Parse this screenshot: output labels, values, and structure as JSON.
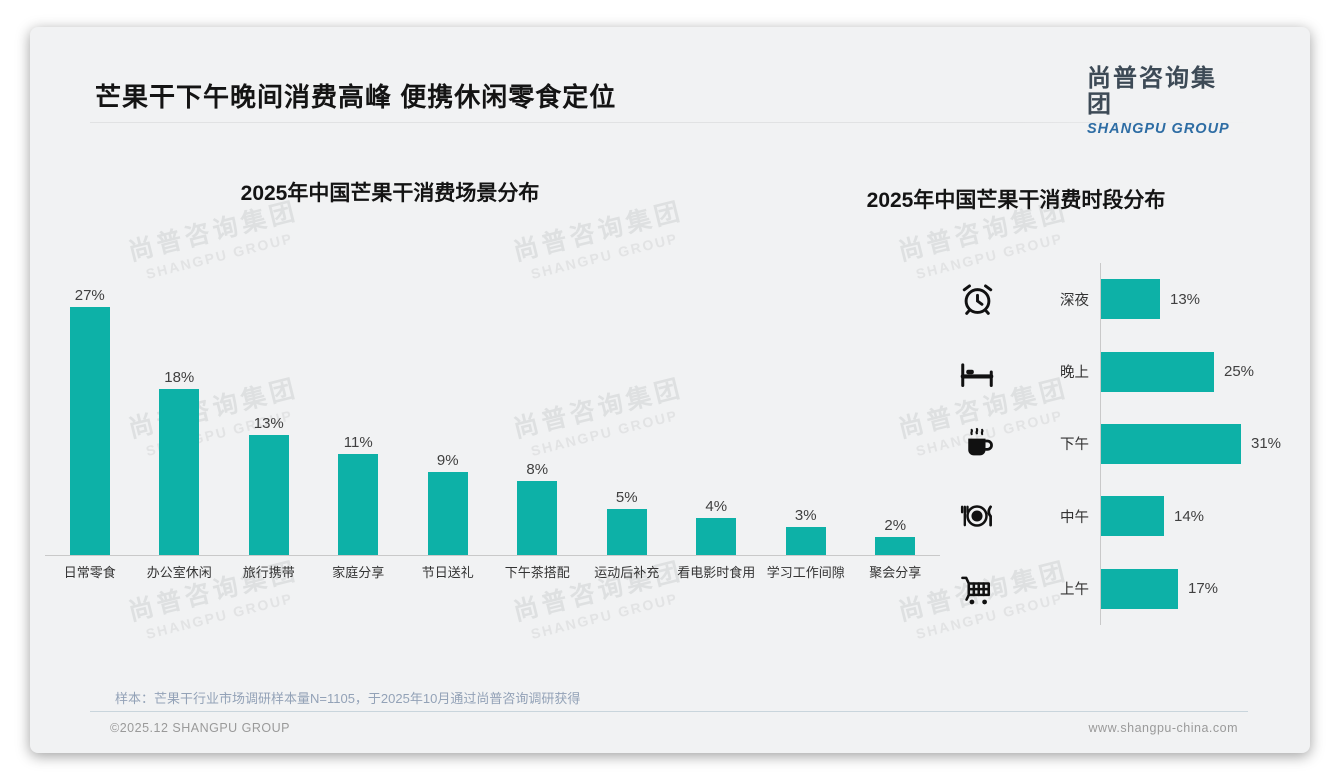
{
  "page": {
    "title": "芒果干下午晚间消费高峰 便携休闲零食定位",
    "logo": {
      "cn": "尚普咨询集团",
      "en": "SHANGPU GROUP"
    },
    "watermark": {
      "cn": "尚普咨询集团",
      "en": "SHANGPU GROUP"
    },
    "footer": {
      "sample_note": "样本：芒果干行业市场调研样本量N=1105，于2025年10月通过尚普咨询调研获得",
      "copyright": "©2025.12 SHANGPU GROUP",
      "website": "www.shangpu-china.com"
    },
    "colors": {
      "accent_teal": "#0db1a7",
      "logo_blue": "#2e6da4",
      "logo_dark": "#3d4a56",
      "card_background": "#f1f2f3",
      "axis_gray": "#c9c9c9",
      "note_blue_gray": "#93a2b7"
    }
  },
  "chart_data": [
    {
      "type": "bar",
      "orientation": "vertical",
      "title": "2025年中国芒果干消费场景分布",
      "categories": [
        "日常零食",
        "办公室休闲",
        "旅行携带",
        "家庭分享",
        "节日送礼",
        "下午茶搭配",
        "运动后补充",
        "看电影时食用",
        "学习工作间隙",
        "聚会分享"
      ],
      "values": [
        27,
        18,
        13,
        11,
        9,
        8,
        5,
        4,
        3,
        2
      ],
      "labels": [
        "27%",
        "18%",
        "13%",
        "11%",
        "9%",
        "8%",
        "5%",
        "4%",
        "3%",
        "2%"
      ],
      "unit": "%",
      "ylim": [
        0,
        29
      ],
      "grid": false,
      "bar_color": "#0db1a7",
      "legend": "none"
    },
    {
      "type": "bar",
      "orientation": "horizontal",
      "title": "2025年中国芒果干消费时段分布",
      "categories": [
        "深夜",
        "晚上",
        "下午",
        "中午",
        "上午"
      ],
      "values": [
        13,
        25,
        31,
        14,
        17
      ],
      "labels": [
        "13%",
        "25%",
        "31%",
        "14%",
        "17%"
      ],
      "icons": [
        "alarm-clock",
        "bed",
        "coffee-cup",
        "plate-cutlery",
        "shopping-cart"
      ],
      "unit": "%",
      "xlim": [
        0,
        35
      ],
      "grid": false,
      "bar_color": "#0db1a7",
      "legend": "none"
    }
  ]
}
